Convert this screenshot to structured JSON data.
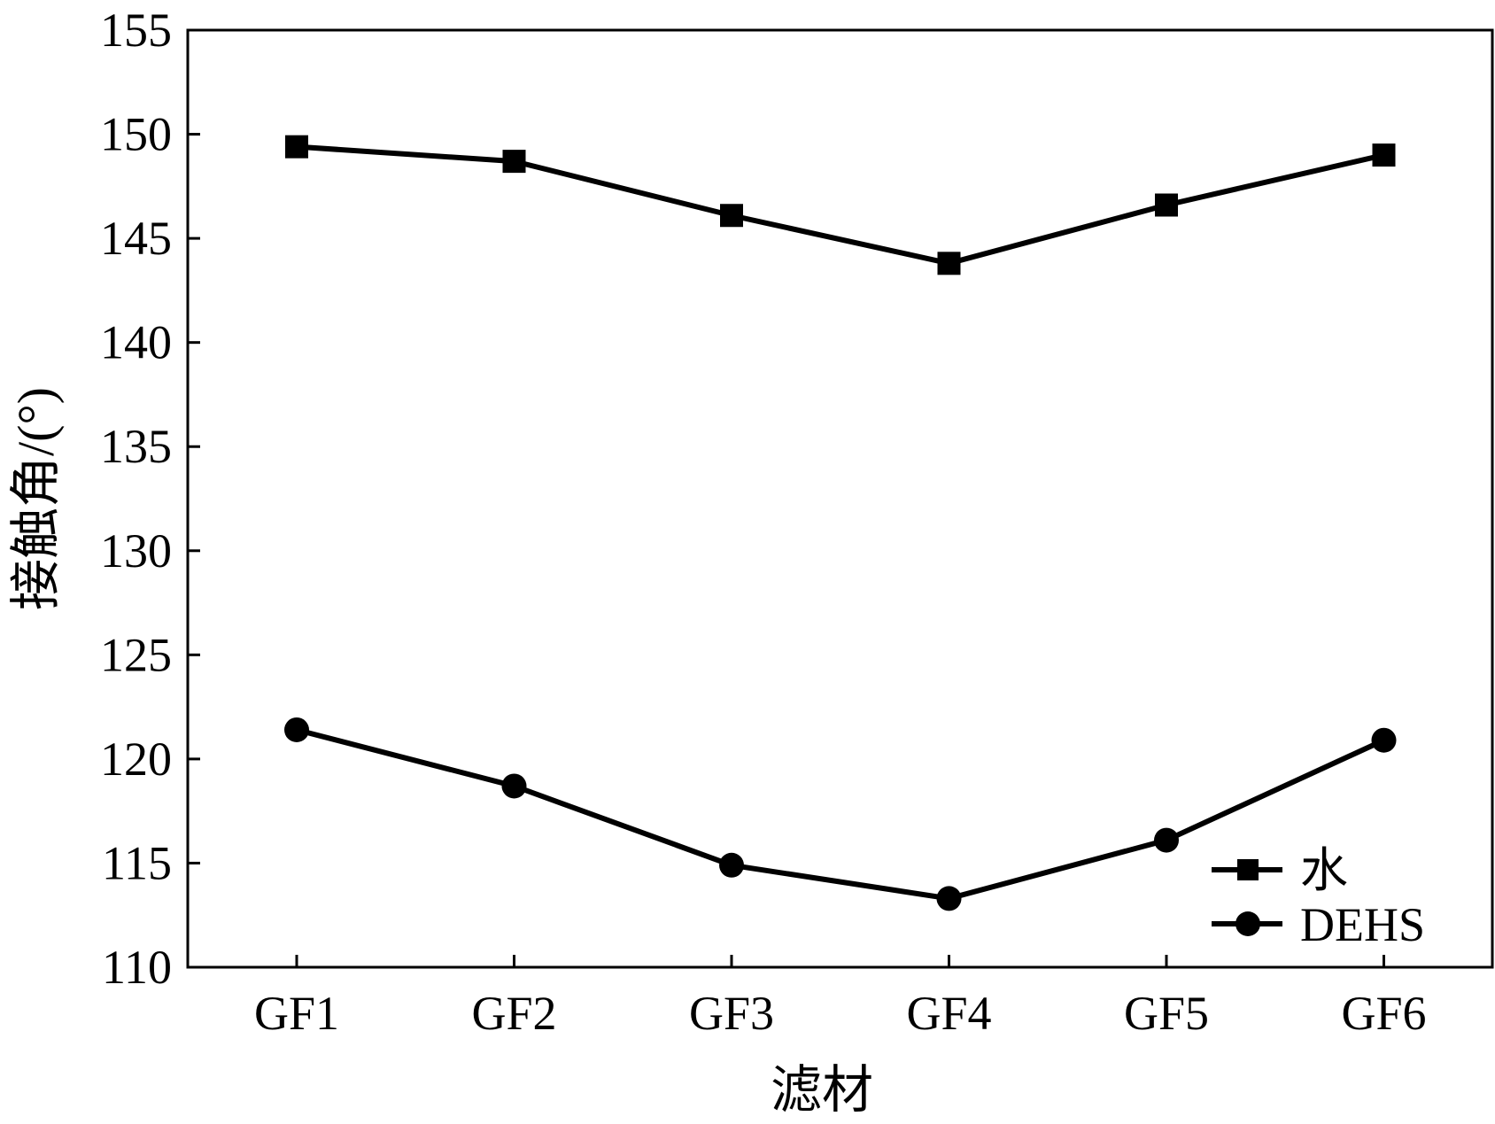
{
  "chart_data": {
    "type": "line",
    "title": "",
    "xlabel": "滤材",
    "ylabel": "接触角/(°)",
    "categories": [
      "GF1",
      "GF2",
      "GF3",
      "GF4",
      "GF5",
      "GF6"
    ],
    "ylim": [
      110,
      155
    ],
    "yticks": [
      110,
      115,
      120,
      125,
      130,
      135,
      140,
      145,
      150,
      155
    ],
    "yticks_labels": [
      "110",
      "115",
      "120",
      "125",
      "130",
      "135",
      "140",
      "145",
      "150",
      "155"
    ],
    "grid": false,
    "legend_position": "bottom-right",
    "series": [
      {
        "name": "水",
        "marker": "square",
        "color": "#000000",
        "values": [
          149.4,
          148.7,
          146.1,
          143.8,
          146.6,
          149.0
        ]
      },
      {
        "name": "DEHS",
        "marker": "circle",
        "color": "#000000",
        "values": [
          121.4,
          118.7,
          114.9,
          113.3,
          116.1,
          120.9
        ]
      }
    ]
  }
}
